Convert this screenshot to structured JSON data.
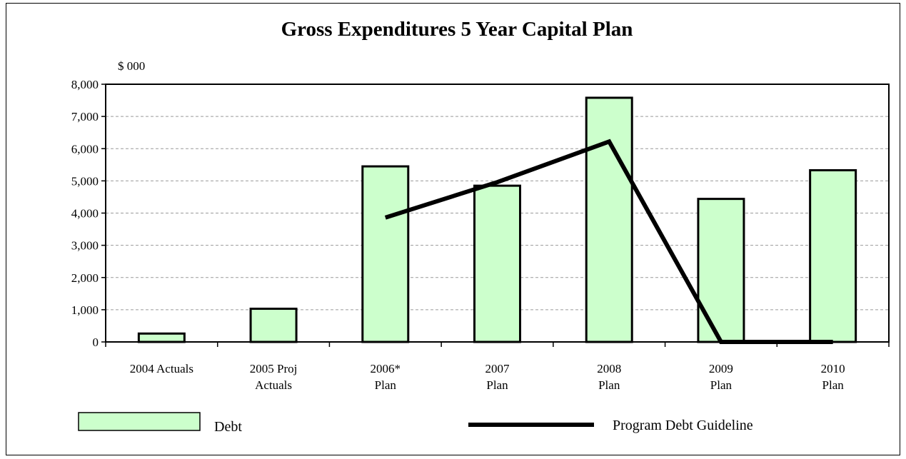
{
  "chart_data": {
    "type": "bar",
    "title": "Gross Expenditures 5 Year Capital Plan",
    "unit_label": "$ 000",
    "categories": [
      [
        "2004 Actuals"
      ],
      [
        "2005 Proj",
        "Actuals"
      ],
      [
        "2006*",
        "Plan"
      ],
      [
        "2007",
        "Plan"
      ],
      [
        "2008",
        "Plan"
      ],
      [
        "2009",
        "Plan"
      ],
      [
        "2010",
        "Plan"
      ]
    ],
    "series": [
      {
        "name": "Debt",
        "kind": "bar",
        "color": "#ccffcc",
        "values": [
          260,
          1030,
          5450,
          4850,
          7580,
          4440,
          5330
        ]
      },
      {
        "name": "Program Debt Guideline",
        "kind": "line",
        "color": "#000000",
        "values": [
          null,
          null,
          3860,
          4960,
          6220,
          0,
          0
        ]
      }
    ],
    "ylim": [
      0,
      8000
    ],
    "yticks": [
      0,
      1000,
      2000,
      3000,
      4000,
      5000,
      6000,
      7000,
      8000
    ],
    "ytick_labels": [
      "0",
      "1,000",
      "2,000",
      "3,000",
      "4,000",
      "5,000",
      "6,000",
      "7,000",
      "8,000"
    ],
    "grid": true,
    "legend_position": "bottom"
  }
}
